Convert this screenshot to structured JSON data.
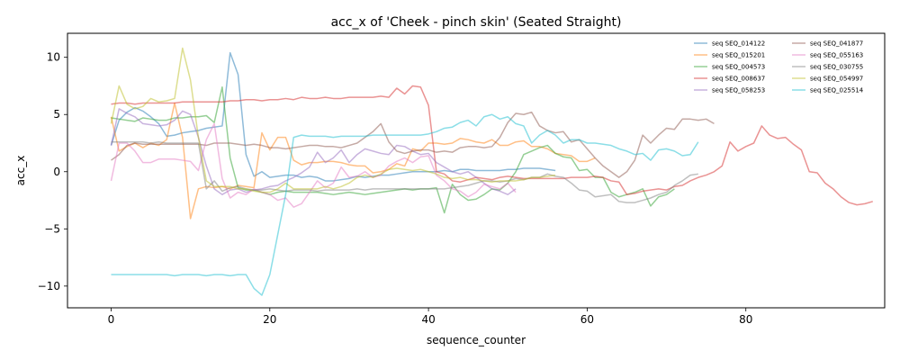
{
  "chart_data": {
    "type": "line",
    "title": "acc_x of 'Cheek - pinch skin' (Seated Straight)",
    "xlabel": "sequence_counter",
    "ylabel": "acc_x",
    "xlim": [
      -5.5,
      97.5
    ],
    "ylim": [
      -11.9,
      12.1
    ],
    "xticks": [
      0,
      20,
      40,
      60,
      80
    ],
    "yticks": [
      -10,
      -5,
      0,
      5,
      10
    ],
    "grid": false,
    "legend_position": "top-right",
    "legend_columns": 2,
    "series": [
      {
        "name": "seq SEQ_014122",
        "color": "#1f77b4",
        "values": [
          2.3,
          4.5,
          5.2,
          5.6,
          5.3,
          4.8,
          4.2,
          3.1,
          3.2,
          3.4,
          3.5,
          3.6,
          3.8,
          3.9,
          4.0,
          10.4,
          8.5,
          1.5,
          -0.4,
          0.0,
          -0.5,
          -0.4,
          -0.3,
          -0.3,
          -0.5,
          -0.4,
          -0.5,
          -0.8,
          -0.8,
          -0.7,
          -0.6,
          -0.4,
          -0.5,
          -0.4,
          -0.3,
          -0.3,
          -0.2,
          -0.1,
          0.0,
          0.0,
          0.0,
          0.0,
          0.1,
          0.0,
          0.2,
          0.2,
          0.1,
          0.1,
          0.1,
          0.1,
          0.2,
          0.2,
          0.3,
          0.3,
          0.3,
          0.2,
          0.1
        ]
      },
      {
        "name": "seq SEQ_015201",
        "color": "#ff7f0e",
        "values": [
          4.8,
          1.8,
          2.2,
          2.5,
          2.1,
          2.5,
          2.3,
          2.8,
          6.0,
          3.0,
          -4.1,
          -1.5,
          -1.3,
          -1.4,
          -1.3,
          -1.5,
          -1.2,
          -1.3,
          -1.4,
          3.4,
          1.9,
          3.0,
          3.0,
          1.0,
          0.6,
          0.8,
          0.8,
          0.9,
          0.9,
          0.8,
          0.6,
          0.5,
          0.5,
          -0.1,
          0.0,
          0.2,
          0.7,
          0.5,
          2.0,
          1.8,
          2.5,
          2.5,
          2.4,
          2.5,
          2.9,
          2.8,
          2.6,
          2.5,
          2.8,
          2.3,
          2.3,
          2.6,
          2.7,
          2.2,
          2.2,
          2.0,
          1.6,
          1.5,
          1.4,
          0.9,
          0.9,
          1.2
        ]
      },
      {
        "name": "seq SEQ_004573",
        "color": "#2ca02c",
        "values": [
          4.7,
          4.6,
          4.5,
          4.4,
          4.7,
          4.6,
          4.5,
          4.5,
          4.7,
          4.7,
          4.8,
          4.8,
          4.9,
          4.3,
          7.4,
          1.2,
          -1.4,
          -1.6,
          -1.6,
          -1.8,
          -2.0,
          -1.8,
          -1.7,
          -1.8,
          -1.8,
          -1.8,
          -1.8,
          -1.9,
          -2.0,
          -1.9,
          -1.8,
          -1.9,
          -2.0,
          -1.9,
          -1.8,
          -1.7,
          -1.6,
          -1.5,
          -1.6,
          -1.5,
          -1.5,
          -1.4,
          -3.6,
          -1.1,
          -2.0,
          -2.5,
          -2.4,
          -2.0,
          -1.5,
          -1.6,
          -1.0,
          0.0,
          1.5,
          1.8,
          2.1,
          2.3,
          1.6,
          1.3,
          1.2,
          0.1,
          0.2,
          -0.5,
          -0.5,
          -1.8,
          -2.2,
          -2.0,
          -1.8,
          -1.5,
          -3.0,
          -2.2,
          -2.0,
          -1.5
        ]
      },
      {
        "name": "seq SEQ_008637",
        "color": "#d62728",
        "values": [
          5.9,
          6.0,
          6.0,
          5.9,
          6.0,
          6.0,
          6.0,
          6.0,
          6.0,
          6.1,
          6.1,
          6.1,
          6.1,
          6.1,
          6.1,
          6.2,
          6.2,
          6.3,
          6.3,
          6.2,
          6.3,
          6.3,
          6.4,
          6.3,
          6.5,
          6.4,
          6.4,
          6.5,
          6.4,
          6.4,
          6.5,
          6.5,
          6.5,
          6.5,
          6.6,
          6.5,
          7.3,
          6.8,
          7.5,
          7.4,
          5.8,
          0.0,
          -0.2,
          -0.8,
          -0.9,
          -0.7,
          -0.5,
          -0.6,
          -0.7,
          -0.5,
          -0.4,
          -0.5,
          -0.6,
          -0.6,
          -0.6,
          -0.6,
          -0.6,
          -0.6,
          -0.5,
          -0.5,
          -0.5,
          -0.4,
          -0.5,
          -0.8,
          -0.9,
          -2.0,
          -1.9,
          -1.7,
          -1.6,
          -1.5,
          -1.6,
          -1.3,
          -1.2,
          -0.8,
          -0.5,
          -0.3,
          0.0,
          0.5,
          2.6,
          1.8,
          2.2,
          2.5,
          4.0,
          3.2,
          2.9,
          3.0,
          2.4,
          1.9,
          0.0,
          -0.1,
          -1.0,
          -1.5,
          -2.2,
          -2.7,
          -2.9,
          -2.8,
          -2.6
        ]
      },
      {
        "name": "seq SEQ_058253",
        "color": "#9467bd",
        "values": [
          2.3,
          5.5,
          5.1,
          4.8,
          4.2,
          4.1,
          4.0,
          4.1,
          4.5,
          5.3,
          5.0,
          3.0,
          0.5,
          -1.5,
          -2.0,
          -1.6,
          -1.5,
          -1.8,
          -1.6,
          -1.5,
          -1.3,
          -1.2,
          -0.8,
          -0.5,
          -0.1,
          0.4,
          1.7,
          0.8,
          1.2,
          1.9,
          0.8,
          1.5,
          2.0,
          1.8,
          1.6,
          1.5,
          2.3,
          2.2,
          1.8,
          1.5,
          1.6,
          0.8,
          0.4,
          0.0,
          -0.2,
          0.0,
          -0.5,
          -1.0,
          -1.5,
          -1.7,
          -2.0,
          -1.5
        ]
      },
      {
        "name": "seq SEQ_041877",
        "color": "#8c564b",
        "values": [
          1.0,
          1.5,
          2.3,
          2.5,
          2.4,
          2.4,
          2.4,
          2.4,
          2.4,
          2.4,
          2.4,
          2.4,
          2.3,
          2.5,
          2.5,
          2.5,
          2.4,
          2.3,
          2.4,
          2.3,
          2.1,
          2.1,
          2.0,
          2.1,
          2.2,
          2.3,
          2.3,
          2.2,
          2.2,
          2.1,
          2.3,
          2.5,
          3.0,
          3.5,
          4.2,
          2.6,
          1.8,
          1.6,
          1.8,
          1.9,
          1.9,
          1.7,
          1.8,
          1.7,
          2.1,
          2.2,
          2.2,
          2.1,
          2.2,
          3.0,
          4.3,
          5.1,
          5.0,
          5.2,
          4.0,
          3.6,
          3.4,
          3.5,
          2.6,
          2.8,
          2.0,
          1.2,
          0.5,
          0.0,
          -0.5,
          0.0,
          1.0,
          3.2,
          2.5,
          3.2,
          3.8,
          3.7,
          4.6,
          4.6,
          4.5,
          4.6,
          4.2
        ]
      },
      {
        "name": "seq SEQ_055163",
        "color": "#e377c2",
        "values": [
          -0.8,
          2.5,
          2.5,
          1.8,
          0.8,
          0.8,
          1.1,
          1.1,
          1.1,
          1.0,
          0.9,
          0.1,
          2.8,
          4.2,
          -0.6,
          -2.3,
          -1.8,
          -2.0,
          -1.5,
          -1.8,
          -2.0,
          -2.5,
          -2.3,
          -3.1,
          -2.8,
          -1.8,
          -0.8,
          -1.4,
          -1.0,
          0.4,
          -0.5,
          -0.4,
          0.0,
          -0.5,
          -0.3,
          0.5,
          0.9,
          1.2,
          0.8,
          1.3,
          1.4,
          -0.3,
          -0.8,
          -1.5,
          -1.7,
          -2.2,
          -1.8,
          -1.1,
          -1.3,
          -1.5,
          -1.0,
          -1.8
        ]
      },
      {
        "name": "seq SEQ_030755",
        "color": "#7f7f7f",
        "values": [
          2.6,
          2.6,
          2.6,
          2.6,
          2.6,
          2.5,
          2.6,
          2.5,
          2.5,
          2.5,
          2.5,
          2.5,
          -1.5,
          -0.8,
          -1.7,
          -1.4,
          -1.3,
          -1.5,
          -1.6,
          -1.6,
          -1.5,
          -1.6,
          -1.7,
          -1.6,
          -1.6,
          -1.6,
          -1.7,
          -1.6,
          -1.6,
          -1.6,
          -1.6,
          -1.5,
          -1.6,
          -1.5,
          -1.5,
          -1.5,
          -1.5,
          -1.5,
          -1.5,
          -1.5,
          -1.5,
          -1.5,
          -1.5,
          -1.4,
          -1.3,
          -1.2,
          -1.0,
          -0.8,
          -0.8,
          -0.9,
          -0.8,
          -0.6,
          -0.7,
          -0.5,
          -0.5,
          -0.2,
          -0.4,
          -0.5,
          -1.0,
          -1.6,
          -1.7,
          -2.2,
          -2.1,
          -2.0,
          -2.6,
          -2.7,
          -2.7,
          -2.5,
          -2.3,
          -2.0,
          -1.8,
          -1.2,
          -0.8,
          -0.3,
          -0.2
        ]
      },
      {
        "name": "seq SEQ_054997",
        "color": "#bcbd22",
        "values": [
          4.2,
          7.5,
          5.9,
          5.5,
          5.7,
          6.4,
          6.1,
          6.2,
          6.4,
          10.8,
          8.0,
          3.0,
          -0.8,
          -1.3,
          -1.3,
          -1.3,
          -1.5,
          -1.5,
          -1.7,
          -1.8,
          -1.8,
          -1.5,
          -1.0,
          -1.5,
          -1.5,
          -1.5,
          -1.5,
          -1.3,
          -1.5,
          -1.3,
          -1.0,
          -0.5,
          -0.3,
          -0.5,
          -0.2,
          0.2,
          0.3,
          0.2,
          0.1,
          0.2,
          0.0,
          -0.2,
          -0.5,
          -0.6,
          -0.5,
          -0.7,
          -0.7,
          -0.8,
          -0.9,
          -0.8,
          -0.8,
          -0.8,
          -0.7,
          -0.5,
          -0.5,
          -0.4,
          -0.3
        ]
      },
      {
        "name": "seq SEQ_025514",
        "color": "#17becf",
        "values": [
          -9.0,
          -9.0,
          -9.0,
          -9.0,
          -9.0,
          -9.0,
          -9.0,
          -9.0,
          -9.1,
          -9.0,
          -9.0,
          -9.0,
          -9.1,
          -9.0,
          -9.0,
          -9.1,
          -9.0,
          -9.0,
          -10.2,
          -10.8,
          -9.0,
          -5.5,
          -2.0,
          3.0,
          3.2,
          3.1,
          3.1,
          3.1,
          3.0,
          3.1,
          3.1,
          3.1,
          3.1,
          3.2,
          3.2,
          3.2,
          3.2,
          3.2,
          3.2,
          3.2,
          3.3,
          3.5,
          3.8,
          3.9,
          4.3,
          4.5,
          4.0,
          4.8,
          5.0,
          4.6,
          4.8,
          4.2,
          4.0,
          2.5,
          3.2,
          3.6,
          3.2,
          2.5,
          2.8,
          2.8,
          2.5,
          2.5,
          2.4,
          2.3,
          2.0,
          1.8,
          1.5,
          1.6,
          1.0,
          1.9,
          2.0,
          1.8,
          1.4,
          1.5,
          2.6
        ]
      }
    ]
  }
}
